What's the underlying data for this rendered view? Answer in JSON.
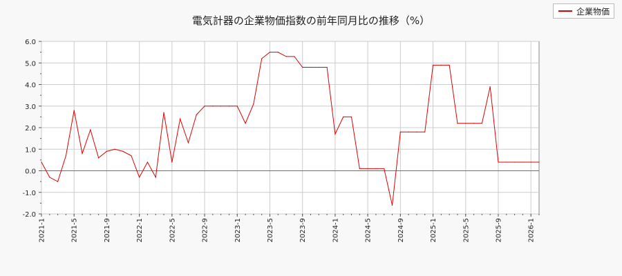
{
  "chart_data": {
    "type": "line",
    "title": "電気計器の企業物価指数の前年同月比の推移（%）",
    "xlabel": "",
    "ylabel": "",
    "ylim": [
      -2.0,
      6.0
    ],
    "yticks": [
      "-2.0",
      "-1.0",
      "0.0",
      "1.0",
      "2.0",
      "3.0",
      "4.0",
      "5.0",
      "6.0"
    ],
    "xticks": [
      "2021-1",
      "2021-5",
      "2021-9",
      "2022-1",
      "2022-5",
      "2022-9",
      "2023-1",
      "2023-5",
      "2023-9",
      "2024-1",
      "2024-5",
      "2024-9",
      "2025-1",
      "2025-5",
      "2025-9",
      "2026-1"
    ],
    "grid": true,
    "legend": "top-right",
    "zero_line_color": "#00bb00",
    "series": [
      {
        "name": "企業物価",
        "color": "#dd0000",
        "x": [
          "2021-1",
          "2021-2",
          "2021-3",
          "2021-4",
          "2021-5",
          "2021-6",
          "2021-7",
          "2021-8",
          "2021-9",
          "2021-10",
          "2021-11",
          "2021-12",
          "2022-1",
          "2022-2",
          "2022-3",
          "2022-4",
          "2022-5",
          "2022-6",
          "2022-7",
          "2022-8",
          "2022-9",
          "2022-10",
          "2022-11",
          "2022-12",
          "2023-1",
          "2023-2",
          "2023-3",
          "2023-4",
          "2023-5",
          "2023-6",
          "2023-7",
          "2023-8",
          "2023-9",
          "2023-10",
          "2023-11",
          "2023-12",
          "2024-1",
          "2024-2",
          "2024-3",
          "2024-4",
          "2024-5",
          "2024-6",
          "2024-7",
          "2024-8",
          "2024-9",
          "2024-10",
          "2024-11",
          "2024-12",
          "2025-1",
          "2025-2",
          "2025-3",
          "2025-4",
          "2025-5",
          "2025-6",
          "2025-7",
          "2025-8",
          "2025-9",
          "2025-10",
          "2025-11",
          "2025-12",
          "2026-1",
          "2026-2"
        ],
        "values": [
          0.4,
          -0.3,
          -0.5,
          0.7,
          2.8,
          0.8,
          1.9,
          0.6,
          0.9,
          1.0,
          0.9,
          0.7,
          -0.3,
          0.4,
          -0.3,
          2.7,
          0.4,
          2.4,
          1.3,
          2.6,
          3.0,
          3.0,
          3.0,
          3.0,
          3.0,
          2.2,
          3.1,
          5.2,
          5.5,
          5.5,
          5.3,
          5.3,
          4.8,
          4.8,
          4.8,
          4.8,
          1.7,
          2.5,
          2.5,
          0.1,
          0.1,
          0.1,
          0.1,
          -1.6,
          1.8,
          1.8,
          1.8,
          1.8,
          4.9,
          4.9,
          4.9,
          2.2,
          2.2,
          2.2,
          2.2,
          3.9,
          0.4,
          0.4,
          0.4,
          0.4,
          0.4,
          0.4
        ]
      }
    ]
  }
}
